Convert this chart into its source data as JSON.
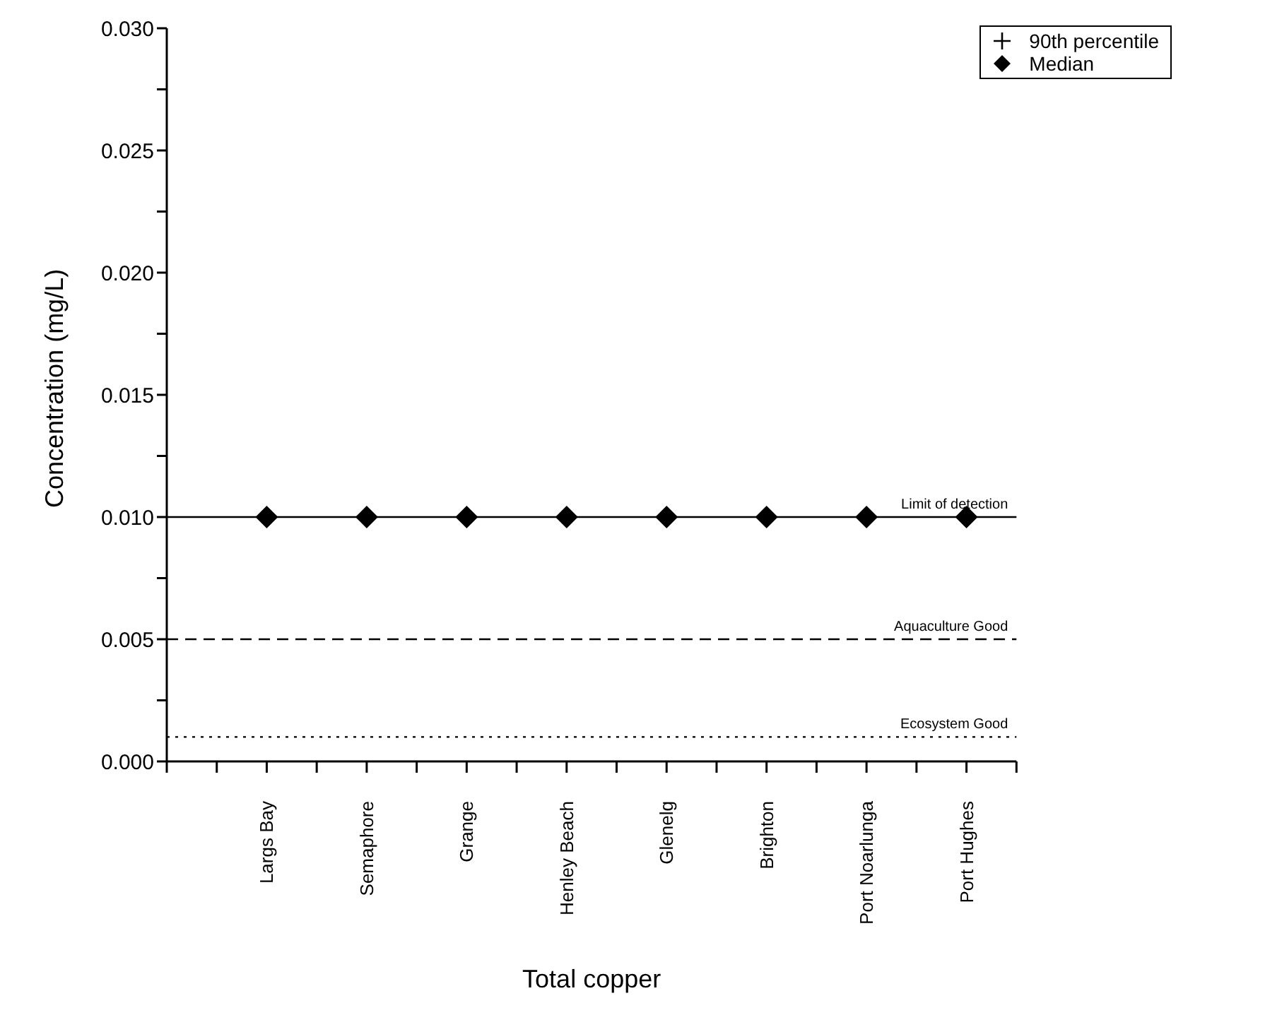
{
  "chart_data": {
    "type": "scatter",
    "xlabel": "Total copper",
    "ylabel": "Concentration (mg/L)",
    "categories": [
      "Largs Bay",
      "Semaphore",
      "Grange",
      "Henley Beach",
      "Glenelg",
      "Brighton",
      "Port Noarlunga",
      "Port Hughes"
    ],
    "series": [
      {
        "name": "90th percentile",
        "color": "#000000",
        "marker": "cross",
        "values": [
          null,
          null,
          null,
          null,
          null,
          null,
          null,
          null
        ]
      },
      {
        "name": "Median",
        "color": "#000000",
        "marker": "diamond",
        "values": [
          0.01,
          0.01,
          0.01,
          0.01,
          0.01,
          0.01,
          0.01,
          0.01
        ]
      }
    ],
    "ylim": [
      0,
      0.03
    ],
    "yticks": [
      {
        "value": 0,
        "label": "0.000"
      },
      {
        "value": 0.0025,
        "label": null
      },
      {
        "value": 0.005,
        "label": "0.005"
      },
      {
        "value": 0.0075,
        "label": null
      },
      {
        "value": 0.01,
        "label": "0.010"
      },
      {
        "value": 0.0125,
        "label": null
      },
      {
        "value": 0.015,
        "label": "0.015"
      },
      {
        "value": 0.0175,
        "label": null
      },
      {
        "value": 0.02,
        "label": "0.020"
      },
      {
        "value": 0.0225,
        "label": null
      },
      {
        "value": 0.025,
        "label": "0.025"
      },
      {
        "value": 0.0275,
        "label": null
      },
      {
        "value": 0.03,
        "label": "0.030"
      }
    ],
    "ref_lines": [
      {
        "axis": "y",
        "value": 0.01,
        "label": "Limit of detection",
        "line_style": "solid",
        "color": "#000000"
      },
      {
        "axis": "y",
        "value": 0.005,
        "label": "Aquaculture Good",
        "line_style": "dashed",
        "color": "#000000"
      },
      {
        "axis": "y",
        "value": 0.001,
        "label": "Ecosystem Good",
        "line_style": "dotted",
        "color": "#000000"
      }
    ],
    "legend": "top right"
  }
}
